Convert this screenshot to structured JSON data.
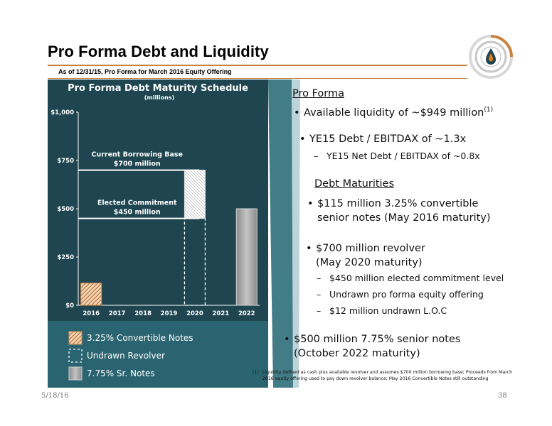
{
  "page": {
    "title": "Pro Forma Debt and Liquidity",
    "subtitle": "As of 12/31/15, Pro Forma for March 2016 Equity Offering",
    "date": "5/18/16",
    "page_number": "38"
  },
  "colors": {
    "accent": "#c9833f",
    "panel_dark": "#1f4550",
    "panel_teal": "#2a6470",
    "bar_gray": "#a6a6a6"
  },
  "logo": {
    "icon": "flame-drop-logo-icon"
  },
  "chart_data": {
    "type": "bar",
    "title": "Pro Forma Debt Maturity Schedule",
    "subtitle": "(millions)",
    "categories": [
      "2016",
      "2017",
      "2018",
      "2019",
      "2020",
      "2021",
      "2022"
    ],
    "series": [
      {
        "name": "3.25% Convertible Notes",
        "values": [
          115,
          0,
          0,
          0,
          0,
          0,
          0
        ],
        "style": "hatched-orange"
      },
      {
        "name": "Undrawn Revolver",
        "values": [
          0,
          0,
          0,
          0,
          450,
          0,
          0
        ],
        "style": "dashed-outline"
      },
      {
        "name": "Undrawn Revolver",
        "values": [
          0,
          0,
          0,
          0,
          250,
          0,
          0
        ],
        "style": "hatched-white",
        "legend": false
      },
      {
        "name": "7.75% Sr. Notes",
        "values": [
          0,
          0,
          0,
          0,
          0,
          0,
          500
        ],
        "style": "gray"
      }
    ],
    "yticks": [
      "$0",
      "$250",
      "$500",
      "$750",
      "$1,000"
    ],
    "ytick_values": [
      0,
      250,
      500,
      750,
      1000
    ],
    "ylim": [
      0,
      1000
    ],
    "reference_lines": [
      {
        "value": 700,
        "label1": "Current Borrowing Base",
        "label2": "$700 million"
      },
      {
        "value": 450,
        "label1": "Elected Commitment",
        "label2": "$450 million"
      }
    ],
    "legend_position": "bottom-left"
  },
  "right": {
    "heading1": "Pro Forma",
    "liquidity_text": "Available liquidity of ~$949 million",
    "liquidity_sup": "(1)",
    "debt_ebitdax": "YE15 Debt / EBITDAX of ~1.3x",
    "net_debt_ebitdax": "YE15 Net Debt / EBITDAX of ~0.8x",
    "heading2": "Debt Maturities",
    "conv_line1": "$115 million 3.25% convertible",
    "conv_line2": "senior notes (May 2016 maturity)",
    "rev_line1": "$700 million revolver",
    "rev_line2": "(May 2020 maturity)",
    "rev_sub1": "$450 million elected commitment level",
    "rev_sub2": "Undrawn pro forma equity offering",
    "rev_sub3": "$12 million undrawn L.O.C",
    "sr_line1": "$500 million 7.75% senior notes",
    "sr_line2": "(October 2022 maturity)"
  },
  "footnote": {
    "marker": "(1)",
    "text": "Liquidity defined as cash plus available revolver and assumes $700 million borrowing base; Proceeds from March 2016 equity offering used to pay down revolver balance; May 2016 Convertible Notes still outstanding"
  }
}
